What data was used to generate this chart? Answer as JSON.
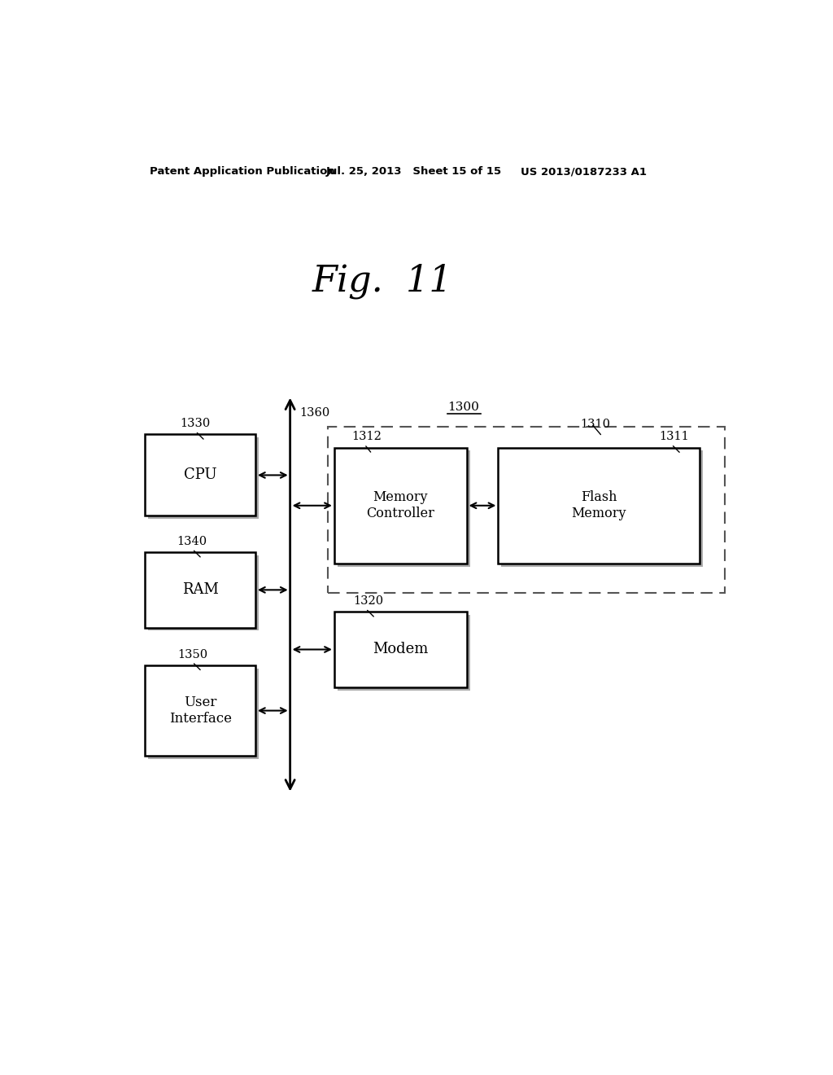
{
  "bg_color": "#ffffff",
  "header_left": "Patent Application Publication",
  "header_mid": "Jul. 25, 2013   Sheet 15 of 15",
  "header_right": "US 2013/0187233 A1",
  "fig_label": "Fig.  11",
  "label_1300": "1300",
  "label_1360": "1360",
  "label_1330": "1330",
  "label_1340": "1340",
  "label_1350": "1350",
  "label_1310": "1310",
  "label_1311": "1311",
  "label_1312": "1312",
  "label_1320": "1320",
  "box_cpu_label": "CPU",
  "box_ram_label": "RAM",
  "box_ui_label": "User\nInterface",
  "box_mc_label": "Memory\nController",
  "box_fm_label": "Flash\nMemory",
  "box_modem_label": "Modem"
}
